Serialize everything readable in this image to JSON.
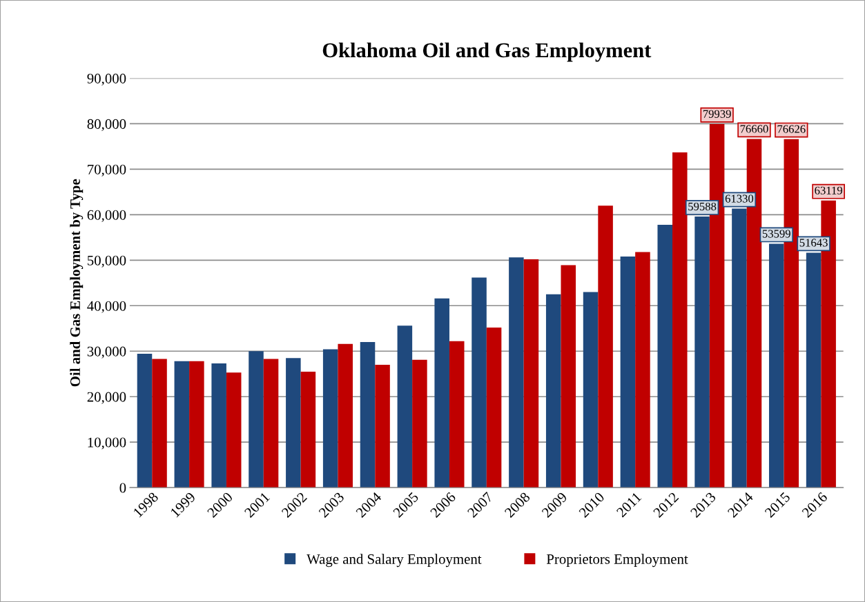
{
  "chart_data": {
    "type": "bar",
    "title": "Oklahoma Oil and Gas Employment",
    "ylabel": "Oil and Gas Employment by Type",
    "categories": [
      "1998",
      "1999",
      "2000",
      "2001",
      "2002",
      "2003",
      "2004",
      "2005",
      "2006",
      "2007",
      "2008",
      "2009",
      "2010",
      "2011",
      "2012",
      "2013",
      "2014",
      "2015",
      "2016"
    ],
    "series": [
      {
        "name": "Wage and Salary Employment",
        "color": "#1f497d",
        "values": [
          29450,
          27800,
          27300,
          30000,
          28500,
          30400,
          32000,
          35600,
          41600,
          46200,
          50600,
          42500,
          43000,
          50800,
          57800,
          59588,
          61330,
          53599,
          51643
        ],
        "value_labels": [
          null,
          null,
          null,
          null,
          null,
          null,
          null,
          null,
          null,
          null,
          null,
          null,
          null,
          null,
          null,
          "59588",
          "61330",
          "53599",
          "51643"
        ]
      },
      {
        "name": "Proprietors Employment",
        "color": "#c00000",
        "values": [
          28300,
          27800,
          25300,
          28300,
          25500,
          31600,
          27000,
          28100,
          32200,
          35200,
          50200,
          48900,
          62000,
          51800,
          73700,
          79939,
          76660,
          76626,
          63119
        ],
        "value_labels": [
          null,
          null,
          null,
          null,
          null,
          null,
          null,
          null,
          null,
          null,
          null,
          null,
          null,
          null,
          null,
          "79939",
          "76660",
          "76626",
          "63119"
        ]
      }
    ],
    "ylim": [
      0,
      90000
    ],
    "yticks": [
      {
        "value": 0,
        "label": "0"
      },
      {
        "value": 10000,
        "label": "10,000"
      },
      {
        "value": 20000,
        "label": "20,000"
      },
      {
        "value": 30000,
        "label": "30,000"
      },
      {
        "value": 40000,
        "label": "40,000"
      },
      {
        "value": 50000,
        "label": "50,000"
      },
      {
        "value": 60000,
        "label": "60,000"
      },
      {
        "value": 70000,
        "label": "70,000"
      },
      {
        "value": 80000,
        "label": "80,000"
      },
      {
        "value": 90000,
        "label": "90,000"
      }
    ],
    "grid": "y",
    "legend": "bottom"
  }
}
